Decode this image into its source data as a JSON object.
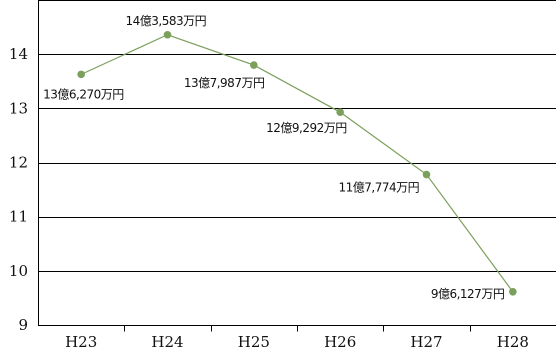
{
  "chart_data": {
    "type": "line",
    "title": "",
    "xlabel": "",
    "ylabel": "",
    "categories": [
      "H23",
      "H24",
      "H25",
      "H26",
      "H27",
      "H28"
    ],
    "series": [
      {
        "values": [
          13.627,
          14.3583,
          13.7987,
          12.9292,
          11.7774,
          9.6127
        ],
        "labels": [
          "13億6,270万円",
          "14億3,583万円",
          "13億7,987万円",
          "12億9,292万円",
          "11億7,774万円",
          "9億6,127万円"
        ],
        "color": "#7ba05b"
      }
    ],
    "ylim": [
      9,
      15
    ],
    "yticks": [
      9,
      10,
      11,
      12,
      13,
      14
    ],
    "grid": true,
    "legend": "none"
  }
}
